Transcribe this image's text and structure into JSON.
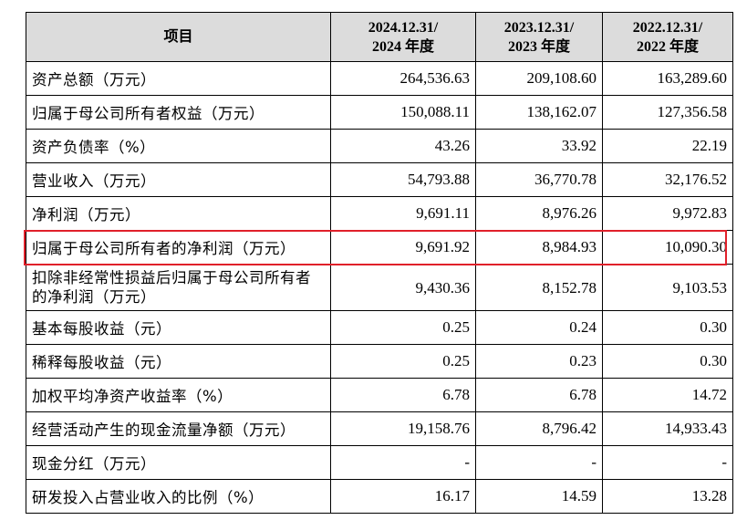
{
  "table": {
    "headers": [
      {
        "line1": "项目",
        "line2": ""
      },
      {
        "line1": "2024.12.31/",
        "line2": "2024 年度"
      },
      {
        "line1": "2023.12.31/",
        "line2": "2023 年度"
      },
      {
        "line1": "2022.12.31/",
        "line2": "2022 年度"
      }
    ],
    "rows": [
      {
        "label": "资产总额（万元）",
        "values": [
          "264,536.63",
          "209,108.60",
          "163,289.60"
        ]
      },
      {
        "label": "归属于母公司所有者权益（万元）",
        "values": [
          "150,088.11",
          "138,162.07",
          "127,356.58"
        ]
      },
      {
        "label": "资产负债率（%）",
        "values": [
          "43.26",
          "33.92",
          "22.19"
        ]
      },
      {
        "label": "营业收入（万元）",
        "values": [
          "54,793.88",
          "36,770.78",
          "32,176.52"
        ]
      },
      {
        "label": "净利润（万元）",
        "values": [
          "9,691.11",
          "8,976.26",
          "9,972.83"
        ]
      },
      {
        "label": "归属于母公司所有者的净利润（万元）",
        "values": [
          "9,691.92",
          "8,984.93",
          "10,090.30"
        ],
        "highlighted": true
      },
      {
        "label": "扣除非经常性损益后归属于母公司所有者的净利润（万元）",
        "values": [
          "9,430.36",
          "8,152.78",
          "9,103.53"
        ]
      },
      {
        "label": "基本每股收益（元）",
        "values": [
          "0.25",
          "0.24",
          "0.30"
        ]
      },
      {
        "label": "稀释每股收益（元）",
        "values": [
          "0.25",
          "0.23",
          "0.30"
        ]
      },
      {
        "label": "加权平均净资产收益率（%）",
        "values": [
          "6.78",
          "6.78",
          "14.72"
        ]
      },
      {
        "label": "经营活动产生的现金流量净额（万元）",
        "values": [
          "19,158.76",
          "8,796.42",
          "14,933.43"
        ]
      },
      {
        "label": "现金分红（万元）",
        "values": [
          "-",
          "-",
          "-"
        ]
      },
      {
        "label": "研发投入占营业收入的比例（%）",
        "values": [
          "16.17",
          "14.59",
          "13.28"
        ]
      }
    ]
  },
  "highlight_color": "#e0202a",
  "header_bg": "#dcdcdc"
}
